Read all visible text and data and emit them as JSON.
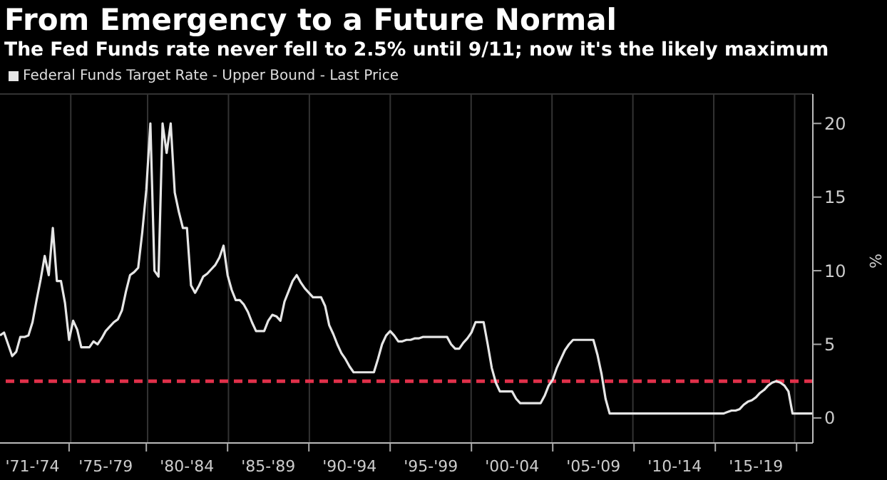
{
  "chart_data": {
    "type": "line",
    "title": "From Emergency to a Future Normal",
    "subtitle": "The Fed Funds rate never fell to 2.5% until 9/11; now it's the likely maximum",
    "ylabel": "%",
    "categories": [
      null,
      null,
      null,
      null,
      null,
      null,
      null,
      null,
      "'71-'74",
      null,
      null,
      null,
      null,
      null,
      null,
      null,
      null,
      null,
      null,
      null,
      null,
      null,
      null,
      null,
      null,
      null,
      "'75-'79",
      null,
      null,
      null,
      null,
      null,
      null,
      null,
      null,
      null,
      null,
      null,
      null,
      null,
      null,
      null,
      null,
      null,
      null,
      null,
      "'80-'84",
      null,
      null,
      null,
      null,
      null,
      null,
      null,
      null,
      null,
      null,
      null,
      null,
      null,
      null,
      null,
      null,
      null,
      null,
      null,
      "'85-'89",
      null,
      null,
      null,
      null,
      null,
      null,
      null,
      null,
      null,
      null,
      null,
      null,
      null,
      null,
      null,
      null,
      null,
      null,
      null,
      "'90-'94",
      null,
      null,
      null,
      null,
      null,
      null,
      null,
      null,
      null,
      null,
      null,
      null,
      null,
      null,
      null,
      null,
      null,
      null,
      null,
      "'95-'99",
      null,
      null,
      null,
      null,
      null,
      null,
      null,
      null,
      null,
      null,
      null,
      null,
      null,
      null,
      null,
      null,
      null,
      null,
      null,
      "'00-'04",
      null,
      null,
      null,
      null,
      null,
      null,
      null,
      null,
      null,
      null,
      null,
      null,
      null,
      null,
      null,
      null,
      null,
      null,
      null,
      "'05-'09",
      null,
      null,
      null,
      null,
      null,
      null,
      null,
      null,
      null,
      null,
      null,
      null,
      null,
      null,
      null,
      null,
      null,
      null,
      null,
      "'10-'14",
      null,
      null,
      null,
      null,
      null,
      null,
      null,
      null,
      null,
      null,
      null,
      null,
      null,
      null,
      null,
      null,
      null,
      null,
      null,
      "'15-'19",
      null,
      null,
      null,
      null,
      null,
      null,
      null,
      null,
      null,
      null,
      null,
      null,
      null,
      null
    ],
    "series": [
      {
        "name": "Federal Funds Target Rate - Upper Bound - Last Price",
        "color": "#e6e6e6",
        "values": [
          5.6,
          5.8,
          5.0,
          4.2,
          4.5,
          5.5,
          5.5,
          5.6,
          6.5,
          8.0,
          9.4,
          11.0,
          9.7,
          12.9,
          9.3,
          9.3,
          7.8,
          5.3,
          6.6,
          6.0,
          4.8,
          4.8,
          4.8,
          5.2,
          5.0,
          5.4,
          5.9,
          6.2,
          6.5,
          6.7,
          7.3,
          8.6,
          9.7,
          9.9,
          10.2,
          12.6,
          15.5,
          20.0,
          10.0,
          9.6,
          20.0,
          18.0,
          20.0,
          15.3,
          14.0,
          12.9,
          12.9,
          9.0,
          8.5,
          9.0,
          9.6,
          9.8,
          10.1,
          10.4,
          10.9,
          11.7,
          9.7,
          8.7,
          8.0,
          8.0,
          7.7,
          7.2,
          6.5,
          5.9,
          5.9,
          5.9,
          6.6,
          7.0,
          6.9,
          6.6,
          7.9,
          8.6,
          9.3,
          9.7,
          9.2,
          8.8,
          8.5,
          8.2,
          8.2,
          8.2,
          7.6,
          6.3,
          5.7,
          5.0,
          4.4,
          4.0,
          3.5,
          3.1,
          3.1,
          3.1,
          3.1,
          3.1,
          3.1,
          4.0,
          5.0,
          5.6,
          5.9,
          5.6,
          5.2,
          5.2,
          5.3,
          5.3,
          5.4,
          5.4,
          5.5,
          5.5,
          5.5,
          5.5,
          5.5,
          5.5,
          5.5,
          5.0,
          4.7,
          4.7,
          5.1,
          5.4,
          5.8,
          6.5,
          6.5,
          6.5,
          5.0,
          3.4,
          2.4,
          1.8,
          1.8,
          1.8,
          1.8,
          1.3,
          1.0,
          1.0,
          1.0,
          1.0,
          1.0,
          1.0,
          1.5,
          2.2,
          2.6,
          3.4,
          4.0,
          4.6,
          5.0,
          5.3,
          5.3,
          5.3,
          5.3,
          5.3,
          5.3,
          4.3,
          3.0,
          1.3,
          0.3,
          0.3,
          0.3,
          0.3,
          0.3,
          0.3,
          0.3,
          0.3,
          0.3,
          0.3,
          0.3,
          0.3,
          0.3,
          0.3,
          0.3,
          0.3,
          0.3,
          0.3,
          0.3,
          0.3,
          0.3,
          0.3,
          0.3,
          0.3,
          0.3,
          0.3,
          0.3,
          0.3,
          0.3,
          0.4,
          0.5,
          0.5,
          0.6,
          0.9,
          1.1,
          1.2,
          1.4,
          1.7,
          1.9,
          2.2,
          2.4,
          2.5,
          2.4,
          2.2,
          1.8,
          0.3,
          0.3,
          0.3,
          0.3,
          0.3,
          0.3
        ]
      }
    ],
    "ylim": [
      -1.7,
      22
    ],
    "yticks": [
      0,
      5,
      10,
      15,
      20
    ],
    "ref_lines": [
      {
        "axis": "y",
        "value": 2.5,
        "color": "#e0304a",
        "line_style": "dashed"
      }
    ],
    "grid": true,
    "legend": "top left",
    "marker": "none",
    "line_style": "solid"
  }
}
